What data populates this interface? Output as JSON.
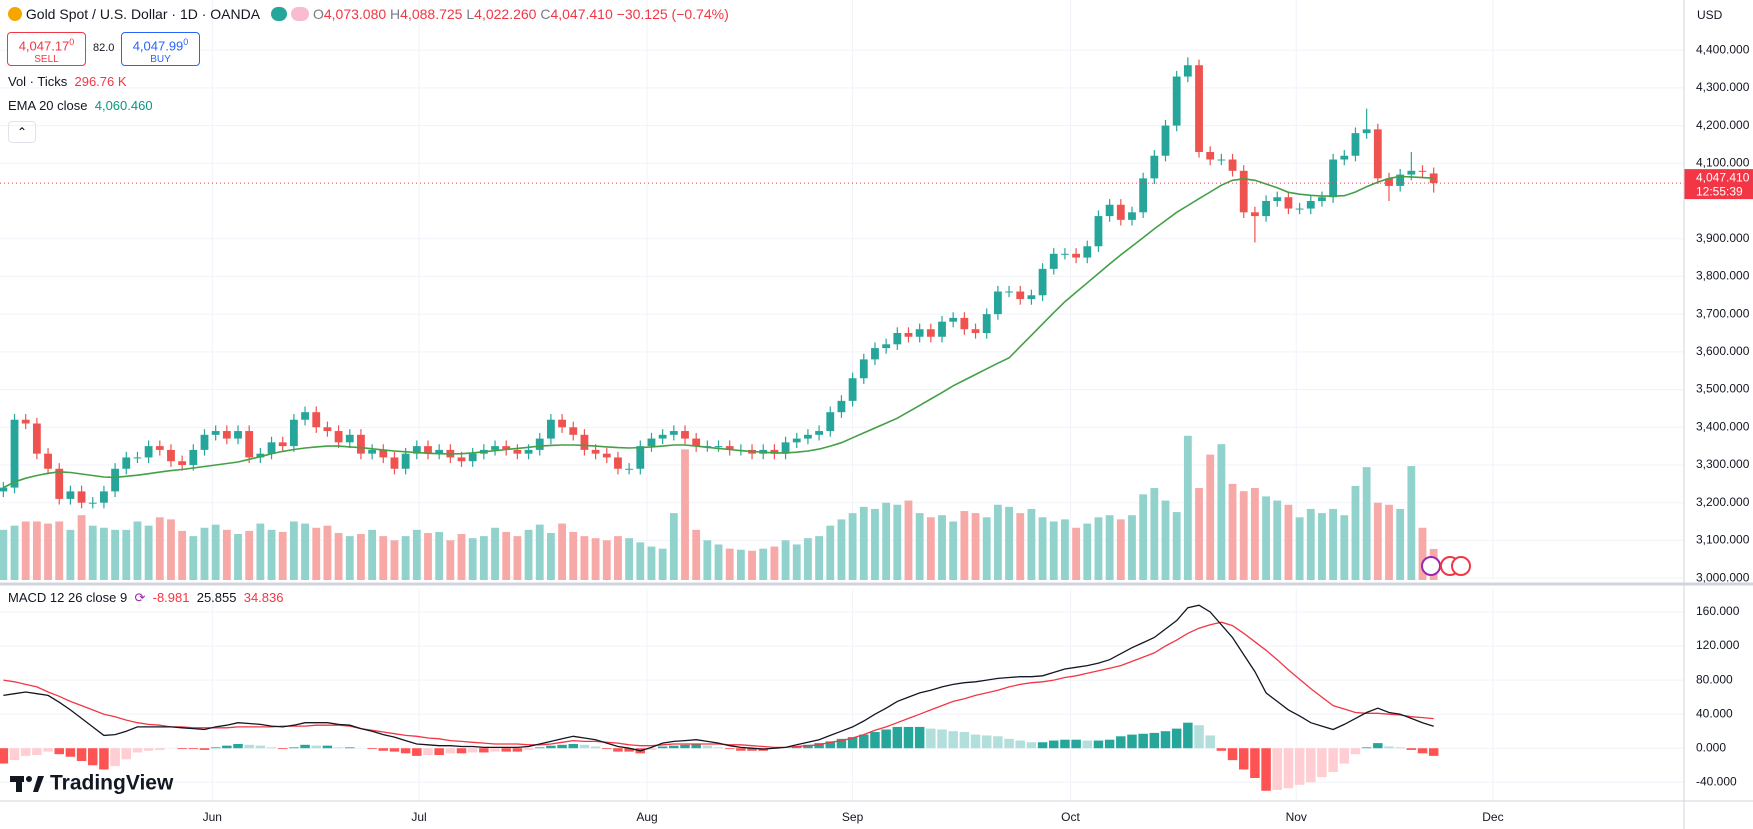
{
  "chart_data": [
    {
      "type": "candlestick",
      "title": "Gold Spot / U.S. Dollar · 1D · OANDA",
      "quote": {
        "open_key": "O",
        "open": "4,073.080",
        "high_key": "H",
        "high": "4,088.725",
        "low_key": "L",
        "low": "4,022.260",
        "close_key": "C",
        "close": "4,047.410",
        "change": "−30.125 (−0.74%)"
      },
      "sell": {
        "price": "4,047.17",
        "small": "0",
        "label": "SELL"
      },
      "spread": "82.0",
      "buy": {
        "price": "4,047.99",
        "small": "0",
        "label": "BUY"
      },
      "volume_legend": {
        "name": "Vol · Ticks",
        "value": "296.76 K"
      },
      "ema_legend": {
        "name": "EMA 20 close",
        "value": "4,060.460"
      },
      "currency": "USD",
      "last_price_label": "4,047.410",
      "countdown": "12:55:39",
      "last_price": 4047.41,
      "up_color": "#26a69a",
      "down_color": "#ef5350",
      "volume_up_color": "#92d2cc",
      "volume_down_color": "#f7a9a7",
      "ema_color": "#43a047",
      "last_price_color": "#f23645",
      "grid": true,
      "xlim": [
        -0.3,
        150.4
      ],
      "ylim": [
        2995,
        4533
      ],
      "vlim": [
        0,
        5550
      ],
      "yticks": [
        {
          "value": 3000,
          "label": "3,000.000"
        },
        {
          "value": 3100,
          "label": "3,100.000"
        },
        {
          "value": 3200,
          "label": "3,200.000"
        },
        {
          "value": 3300,
          "label": "3,300.000"
        },
        {
          "value": 3400,
          "label": "3,400.000"
        },
        {
          "value": 3500,
          "label": "3,500.000"
        },
        {
          "value": 3600,
          "label": "3,600.000"
        },
        {
          "value": 3700,
          "label": "3,700.000"
        },
        {
          "value": 3800,
          "label": "3,800.000"
        },
        {
          "value": 3900,
          "label": "3,900.000"
        },
        {
          "value": 4100,
          "label": "4,100.000"
        },
        {
          "value": 4200,
          "label": "4,200.000"
        },
        {
          "value": 4300,
          "label": "4,300.000"
        },
        {
          "value": 4400,
          "label": "4,400.000"
        }
      ],
      "open": [
        3230,
        3240,
        3420,
        3410,
        3330,
        3290,
        3210,
        3230,
        3200,
        3200,
        3230,
        3290,
        3320,
        3320,
        3350,
        3340,
        3310,
        3300,
        3340,
        3380,
        3390,
        3370,
        3390,
        3320,
        3330,
        3360,
        3350,
        3420,
        3440,
        3400,
        3390,
        3360,
        3380,
        3330,
        3340,
        3320,
        3290,
        3330,
        3350,
        3330,
        3340,
        3320,
        3310,
        3330,
        3340,
        3350,
        3340,
        3330,
        3340,
        3370,
        3420,
        3400,
        3380,
        3340,
        3330,
        3320,
        3290,
        3290,
        3350,
        3370,
        3380,
        3390,
        3370,
        3350,
        3350,
        3350,
        3340,
        3340,
        3330,
        3340,
        3330,
        3360,
        3370,
        3380,
        3390,
        3440,
        3470,
        3530,
        3580,
        3610,
        3620,
        3650,
        3640,
        3660,
        3640,
        3680,
        3690,
        3660,
        3650,
        3700,
        3760,
        3760,
        3740,
        3750,
        3820,
        3860,
        3860,
        3850,
        3880,
        3960,
        3990,
        3950,
        3970,
        4060,
        4120,
        4200,
        4330,
        4360,
        4130,
        4110,
        4110,
        4080,
        3970,
        3960,
        4000,
        4010,
        3980,
        3980,
        4000,
        4010,
        4110,
        4120,
        4180,
        4190,
        4060,
        4040,
        4070,
        4080,
        4073.08
      ],
      "high": [
        3255,
        3435,
        3435,
        3425,
        3345,
        3305,
        3245,
        3245,
        3215,
        3245,
        3305,
        3335,
        3335,
        3365,
        3365,
        3355,
        3325,
        3355,
        3395,
        3405,
        3405,
        3405,
        3405,
        3345,
        3375,
        3375,
        3435,
        3455,
        3455,
        3415,
        3405,
        3395,
        3395,
        3355,
        3355,
        3335,
        3345,
        3365,
        3365,
        3355,
        3355,
        3335,
        3345,
        3355,
        3365,
        3365,
        3355,
        3355,
        3385,
        3435,
        3435,
        3415,
        3395,
        3355,
        3345,
        3335,
        3305,
        3365,
        3385,
        3395,
        3405,
        3405,
        3385,
        3365,
        3365,
        3365,
        3355,
        3355,
        3355,
        3355,
        3375,
        3385,
        3395,
        3405,
        3455,
        3485,
        3545,
        3595,
        3625,
        3635,
        3665,
        3665,
        3675,
        3675,
        3695,
        3705,
        3705,
        3675,
        3715,
        3775,
        3775,
        3775,
        3765,
        3835,
        3875,
        3875,
        3875,
        3895,
        3975,
        4005,
        4005,
        3985,
        4075,
        4135,
        4215,
        4345,
        4381,
        4375,
        4145,
        4125,
        4125,
        4095,
        3985,
        4015,
        4025,
        4025,
        3995,
        4015,
        4025,
        4125,
        4135,
        4195,
        4245,
        4205,
        4075,
        4085,
        4130,
        4095,
        4088.725
      ],
      "low": [
        3215,
        3225,
        3395,
        3315,
        3275,
        3195,
        3195,
        3185,
        3185,
        3185,
        3215,
        3275,
        3305,
        3305,
        3325,
        3295,
        3285,
        3285,
        3325,
        3365,
        3355,
        3355,
        3305,
        3305,
        3315,
        3335,
        3335,
        3405,
        3385,
        3375,
        3345,
        3345,
        3315,
        3315,
        3305,
        3275,
        3275,
        3315,
        3315,
        3315,
        3305,
        3295,
        3295,
        3315,
        3325,
        3325,
        3315,
        3315,
        3325,
        3355,
        3385,
        3365,
        3325,
        3315,
        3305,
        3275,
        3275,
        3275,
        3335,
        3355,
        3365,
        3355,
        3335,
        3335,
        3335,
        3325,
        3325,
        3315,
        3315,
        3315,
        3315,
        3345,
        3355,
        3365,
        3375,
        3425,
        3455,
        3515,
        3565,
        3595,
        3605,
        3625,
        3625,
        3625,
        3625,
        3665,
        3645,
        3635,
        3635,
        3685,
        3745,
        3725,
        3725,
        3735,
        3805,
        3845,
        3835,
        3835,
        3865,
        3945,
        3935,
        3935,
        3955,
        4045,
        4105,
        4185,
        4315,
        4115,
        4095,
        4095,
        4065,
        3955,
        3890,
        3945,
        3985,
        3965,
        3965,
        3965,
        3985,
        3995,
        4095,
        4105,
        4165,
        4045,
        4000,
        4025,
        4055,
        4060,
        4022.26
      ],
      "close": [
        3240,
        3420,
        3410,
        3330,
        3290,
        3210,
        3230,
        3200,
        3200,
        3230,
        3290,
        3320,
        3320,
        3350,
        3340,
        3310,
        3300,
        3340,
        3380,
        3390,
        3370,
        3390,
        3320,
        3330,
        3360,
        3350,
        3420,
        3440,
        3400,
        3390,
        3360,
        3380,
        3330,
        3340,
        3320,
        3290,
        3330,
        3350,
        3330,
        3340,
        3320,
        3310,
        3330,
        3340,
        3350,
        3340,
        3330,
        3340,
        3370,
        3420,
        3400,
        3380,
        3340,
        3330,
        3320,
        3290,
        3290,
        3350,
        3370,
        3380,
        3390,
        3370,
        3350,
        3350,
        3350,
        3340,
        3340,
        3330,
        3340,
        3330,
        3360,
        3370,
        3380,
        3390,
        3440,
        3470,
        3530,
        3580,
        3610,
        3620,
        3650,
        3640,
        3660,
        3640,
        3680,
        3690,
        3660,
        3650,
        3700,
        3760,
        3760,
        3740,
        3750,
        3820,
        3860,
        3860,
        3850,
        3880,
        3960,
        3990,
        3950,
        3970,
        4060,
        4120,
        4200,
        4330,
        4360,
        4130,
        4110,
        4110,
        4080,
        3970,
        3960,
        4000,
        4010,
        3980,
        3980,
        4000,
        4010,
        4110,
        4120,
        4180,
        4190,
        4060,
        4040,
        4070,
        4080,
        4077.535,
        4047.41
      ],
      "volume": [
        480,
        520,
        560,
        560,
        540,
        560,
        480,
        620,
        520,
        500,
        480,
        480,
        560,
        520,
        600,
        580,
        470,
        420,
        500,
        530,
        480,
        440,
        470,
        540,
        480,
        460,
        560,
        540,
        500,
        520,
        450,
        420,
        440,
        480,
        420,
        380,
        420,
        480,
        450,
        460,
        380,
        440,
        400,
        420,
        500,
        460,
        420,
        480,
        530,
        450,
        540,
        460,
        420,
        400,
        380,
        420,
        400,
        360,
        320,
        300,
        640,
        1250,
        480,
        380,
        340,
        300,
        290,
        280,
        300,
        320,
        380,
        340,
        400,
        420,
        520,
        580,
        640,
        700,
        680,
        740,
        720,
        760,
        640,
        600,
        620,
        560,
        660,
        640,
        600,
        720,
        700,
        640,
        680,
        600,
        560,
        580,
        500,
        540,
        600,
        620,
        580,
        620,
        820,
        880,
        760,
        650,
        1380,
        880,
        1200,
        1300,
        920,
        850,
        880,
        800,
        760,
        720,
        600,
        680,
        640,
        680,
        620,
        900,
        1080,
        740,
        720,
        680,
        1090,
        500,
        296.76
      ],
      "ema": [
        3240,
        3255,
        3265,
        3272,
        3278,
        3282,
        3280,
        3276,
        3272,
        3268,
        3267,
        3270,
        3273,
        3277,
        3281,
        3285,
        3288,
        3292,
        3296,
        3300,
        3304,
        3308,
        3315,
        3322,
        3330,
        3336,
        3341,
        3345,
        3348,
        3350,
        3350,
        3348,
        3346,
        3343,
        3340,
        3337,
        3335,
        3333,
        3331,
        3330,
        3329,
        3330,
        3332,
        3335,
        3338,
        3341,
        3344,
        3347,
        3350,
        3352,
        3353,
        3353,
        3352,
        3350,
        3348,
        3346,
        3345,
        3346,
        3348,
        3350,
        3353,
        3353,
        3350,
        3347,
        3344,
        3341,
        3338,
        3336,
        3334,
        3332,
        3332,
        3334,
        3337,
        3342,
        3350,
        3359,
        3372,
        3385,
        3398,
        3411,
        3424,
        3441,
        3458,
        3475,
        3492,
        3510,
        3525,
        3540,
        3555,
        3570,
        3584,
        3614,
        3644,
        3674,
        3704,
        3733,
        3758,
        3783,
        3808,
        3833,
        3857,
        3880,
        3903,
        3926,
        3948,
        3970,
        3988,
        4006,
        4024,
        4042,
        4055,
        4059,
        4055,
        4045,
        4035,
        4023,
        4018,
        4015,
        4013,
        4013,
        4014,
        4024,
        4038,
        4050,
        4060,
        4065,
        4064,
        4062,
        4060.46
      ]
    },
    {
      "type": "macd",
      "title": "MACD 12 26 close 9",
      "histogram_label": "-8.981",
      "macd_label": "25.855",
      "signal_label": "34.836",
      "macd_color": "#131722",
      "signal_color": "#f23645",
      "hist_colors": [
        "#26a69a",
        "#b2dfdb",
        "#ffcdd2",
        "#ff5252"
      ],
      "grid": true,
      "xlim": [
        -0.3,
        150.4
      ],
      "ylim": [
        -62,
        187
      ],
      "yticks": [
        {
          "value": 160,
          "label": "160.000"
        },
        {
          "value": 120,
          "label": "120.000"
        },
        {
          "value": 80,
          "label": "80.000"
        },
        {
          "value": 40,
          "label": "40.000"
        },
        {
          "value": 0,
          "label": "0.000"
        },
        {
          "value": -40,
          "label": "-40.000"
        }
      ],
      "xticks": [
        {
          "value": 18.7,
          "label": "Jun"
        },
        {
          "value": 37.2,
          "label": "Jul"
        },
        {
          "value": 57.6,
          "label": "Aug"
        },
        {
          "value": 76,
          "label": "Sep"
        },
        {
          "value": 95.5,
          "label": "Oct"
        },
        {
          "value": 115.7,
          "label": "Nov"
        },
        {
          "value": 133.3,
          "label": "Dec"
        }
      ],
      "macd": [
        62,
        64,
        66,
        64,
        62,
        54,
        45,
        35,
        25,
        15,
        16,
        20,
        25,
        25,
        25,
        25,
        24,
        23,
        22,
        25,
        27,
        30,
        29,
        28,
        26,
        25,
        27,
        30,
        30,
        30,
        28,
        27,
        23,
        20,
        16,
        13,
        9,
        5,
        4,
        3,
        3,
        2,
        2,
        1,
        1,
        1,
        1,
        2,
        5,
        8,
        11,
        14,
        12,
        10,
        6,
        2,
        0,
        -3,
        1,
        6,
        8,
        9,
        10,
        8,
        6,
        3,
        1,
        0,
        -1,
        0,
        1,
        4,
        7,
        10,
        15,
        20,
        25,
        32,
        40,
        47,
        55,
        60,
        65,
        68,
        72,
        75,
        77,
        78,
        80,
        82,
        83,
        84,
        84,
        85,
        89,
        93,
        95,
        97,
        100,
        104,
        111,
        118,
        124,
        130,
        140,
        150,
        165,
        168,
        160,
        145,
        130,
        110,
        90,
        65,
        55,
        45,
        38,
        30,
        26,
        22,
        28,
        35,
        42,
        47,
        42,
        40,
        35,
        30,
        25.855
      ],
      "signal": [
        80,
        78,
        75,
        72,
        66,
        61,
        55,
        50,
        45,
        40,
        37,
        33,
        30,
        28,
        27,
        25,
        25,
        24,
        24,
        24,
        24,
        25,
        25,
        25,
        25,
        26,
        26,
        26,
        27,
        27,
        27,
        26,
        23,
        21,
        19,
        17,
        15,
        14,
        12,
        11,
        9,
        8,
        7,
        6,
        5,
        5,
        5,
        4,
        4,
        5,
        7,
        9,
        8,
        8,
        7,
        6,
        4,
        3,
        3,
        4,
        5,
        5,
        5,
        5,
        5,
        4,
        4,
        3,
        2,
        1,
        1,
        2,
        3,
        4,
        7,
        9,
        12,
        16,
        21,
        25,
        30,
        35,
        40,
        45,
        50,
        55,
        58,
        62,
        65,
        68,
        72,
        75,
        77,
        78,
        80,
        83,
        85,
        88,
        91,
        94,
        97,
        102,
        107,
        112,
        120,
        127,
        135,
        141,
        145,
        148,
        144,
        135,
        125,
        115,
        104,
        92,
        81,
        70,
        60,
        50,
        46,
        42,
        41,
        41,
        40,
        39,
        37,
        36,
        34.836
      ],
      "histogram": [
        -18,
        -14,
        -9,
        -8,
        -4,
        -7,
        -10,
        -15,
        -20,
        -25,
        -21,
        -13,
        -5,
        -3,
        -2,
        0,
        -1,
        -1,
        -2,
        1,
        3,
        5,
        4,
        3,
        1,
        -1,
        1,
        4,
        3,
        3,
        1,
        1,
        0,
        -1,
        -3,
        -4,
        -6,
        -9,
        -8,
        -8,
        -6,
        -6,
        -5,
        -5,
        -4,
        -4,
        -4,
        -2,
        1,
        3,
        4,
        5,
        4,
        2,
        -1,
        -4,
        -4,
        -6,
        -2,
        2,
        3,
        4,
        5,
        3,
        1,
        -1,
        -3,
        -3,
        -3,
        -1,
        0,
        2,
        4,
        6,
        8,
        11,
        13,
        16,
        19,
        22,
        25,
        25,
        25,
        23,
        22,
        20,
        19,
        16,
        15,
        14,
        11,
        9,
        7,
        7,
        9,
        10,
        10,
        9,
        9,
        10,
        14,
        16,
        17,
        18,
        20,
        23,
        30,
        27,
        15,
        -3,
        -14,
        -25,
        -35,
        -50,
        -49,
        -47,
        -43,
        -40,
        -34,
        -28,
        -18,
        -7,
        1,
        6,
        2,
        1,
        -2,
        -6,
        -8.981
      ]
    }
  ],
  "branding": "TradingView"
}
